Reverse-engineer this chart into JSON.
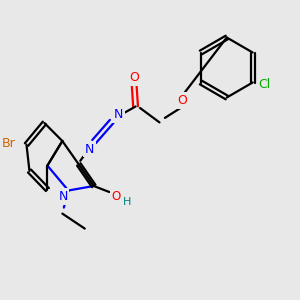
{
  "background_color": "#e8e8e8",
  "atom_colors": {
    "N": "#0000ff",
    "O": "#ff0000",
    "Br": "#cc6600",
    "Cl": "#00aa00",
    "C": "#000000",
    "H": "#008080"
  },
  "figsize": [
    3.0,
    3.0
  ],
  "dpi": 100,
  "xlim": [
    0,
    10
  ],
  "ylim": [
    0,
    10
  ]
}
